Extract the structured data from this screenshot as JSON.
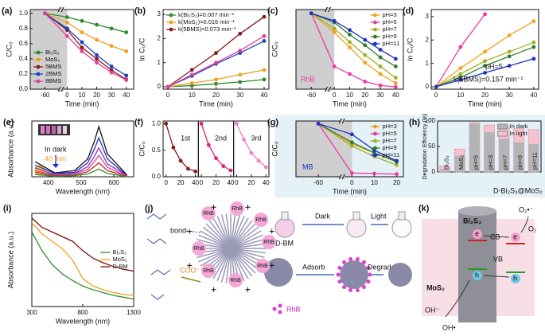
{
  "chart_data": [
    {
      "type": "line",
      "label": "(a)",
      "xlabel": "Time (min)",
      "ylabel": "C/C₀",
      "markers": true,
      "legend": "lower left",
      "x": [
        -60,
        0,
        10,
        20,
        30,
        40
      ],
      "xlim": [
        -70,
        45
      ],
      "xbreak": [
        -50,
        -5
      ],
      "shade": [
        -70,
        0
      ],
      "xticks": [
        -60,
        0,
        10,
        20,
        30,
        40
      ],
      "ylim": [
        0,
        1.05
      ],
      "yticks": [
        {
          "value": 0,
          "label": "0.0"
        },
        0.2,
        0.4,
        0.6,
        0.8,
        {
          "value": 1,
          "label": "1.0"
        }
      ],
      "series": [
        {
          "name": "Bi₂S₃",
          "color": "#2e8b2e",
          "values": [
            1.0,
            0.95,
            0.9,
            0.85,
            0.8,
            0.75
          ]
        },
        {
          "name": "MoS₂",
          "color": "#f0a020",
          "values": [
            1.0,
            0.88,
            0.75,
            0.65,
            0.57,
            0.5
          ]
        },
        {
          "name": "5BMS",
          "color": "#8b1a1a",
          "values": [
            1.0,
            0.78,
            0.55,
            0.4,
            0.25,
            0.13
          ]
        },
        {
          "name": "2BMS",
          "color": "#1f3fbf",
          "values": [
            1.0,
            0.8,
            0.62,
            0.45,
            0.3,
            0.18
          ]
        },
        {
          "name": "8BMS",
          "color": "#e0409a",
          "values": [
            1.0,
            0.7,
            0.5,
            0.35,
            0.22,
            0.12
          ]
        }
      ]
    },
    {
      "type": "line",
      "label": "(b)",
      "xlabel": "Time (min)",
      "ylabel": "ln C₀/C",
      "markers": true,
      "legend": "upper left",
      "x": [
        0,
        10,
        20,
        30,
        40
      ],
      "xlim": [
        -2,
        42
      ],
      "xticks": [
        0,
        10,
        20,
        30,
        40
      ],
      "ylim": [
        -0.1,
        3.2
      ],
      "yticks": [
        0,
        1,
        2,
        3
      ],
      "series": [
        {
          "name": "k(Bi₂S₃)=0.007 min⁻¹",
          "color": "#2e8b2e",
          "values": [
            0,
            0.05,
            0.12,
            0.2,
            0.3
          ]
        },
        {
          "name": "k(MoS₂)=0.016 min⁻¹",
          "color": "#f0a020",
          "values": [
            0,
            0.15,
            0.3,
            0.5,
            0.7
          ]
        },
        {
          "name": "k(5BMS)=0.073 min⁻¹",
          "color": "#8b1a1a",
          "values": [
            0,
            0.7,
            1.4,
            2.2,
            2.9
          ]
        },
        {
          "color": "#1f3fbf",
          "values": [
            0,
            0.45,
            0.95,
            1.4,
            1.9
          ]
        },
        {
          "color": "#e0409a",
          "values": [
            0,
            0.5,
            1.0,
            1.5,
            2.1
          ]
        }
      ]
    },
    {
      "type": "line",
      "label": "(c)",
      "xlabel": "Time (min)",
      "ylabel": "C/C₀",
      "markers": true,
      "legend": "upper right",
      "x": [
        -60,
        0,
        10,
        20,
        30,
        40
      ],
      "xlim": [
        -70,
        45
      ],
      "xbreak": [
        -50,
        -5
      ],
      "shade": [
        -70,
        0
      ],
      "xticks": [
        -60,
        0,
        10,
        20,
        30,
        40
      ],
      "ylim": [
        0,
        1.05
      ],
      "annotations": [
        {
          "text": "RhB",
          "color": "#e0409a"
        }
      ],
      "series": [
        {
          "name": "pH=3",
          "color": "#f5a020",
          "values": [
            1,
            0.75,
            0.55,
            0.35,
            0.2,
            0.08
          ]
        },
        {
          "name": "pH=5",
          "color": "#ee3aa0",
          "values": [
            1,
            0.3,
            0.2,
            0.1,
            0.05,
            0.03
          ]
        },
        {
          "name": "pH=7",
          "color": "#a0b020",
          "values": [
            1,
            0.8,
            0.62,
            0.45,
            0.3,
            0.15
          ]
        },
        {
          "name": "pH=9",
          "color": "#2d7d2d",
          "values": [
            1,
            0.88,
            0.72,
            0.58,
            0.42,
            0.3
          ]
        },
        {
          "name": "pH=11",
          "color": "#2030c0",
          "values": [
            1,
            0.9,
            0.78,
            0.65,
            0.52,
            0.4
          ]
        }
      ]
    },
    {
      "type": "line",
      "label": "(d)",
      "xlabel": "Time (min)",
      "ylabel": "ln C₀/C",
      "markers": true,
      "x": [
        0,
        10,
        20,
        30,
        40
      ],
      "xlim": [
        -2,
        42
      ],
      "xticks": [
        0,
        10,
        20,
        30,
        40
      ],
      "ylim": [
        -0.1,
        3.3
      ],
      "yticks": [
        0,
        1,
        2,
        3
      ],
      "annotations": [
        {
          "text": "pH=5",
          "color": "#111"
        },
        {
          "text": "k(5BMS)=0.157 min⁻¹",
          "color": "#111"
        }
      ],
      "series": [
        {
          "color": "#f5a020",
          "values": [
            0,
            0.8,
            1.5,
            2.2,
            2.8
          ]
        },
        {
          "color": "#ee3aa0",
          "values": [
            0,
            1.7,
            3.1,
            null,
            null
          ]
        },
        {
          "color": "#a0b020",
          "values": [
            0,
            0.55,
            1.1,
            1.5,
            1.9
          ]
        },
        {
          "color": "#2d7d2d",
          "values": [
            0,
            0.4,
            0.9,
            1.3,
            1.7
          ]
        },
        {
          "color": "#2030c0",
          "values": [
            0,
            0.3,
            0.6,
            0.9,
            1.2
          ]
        }
      ]
    },
    {
      "type": "line",
      "label": "(e)",
      "xlabel": "Wavelength (nm)",
      "ylabel": "Absorbance (a.u.)",
      "markers": false,
      "x": [
        360,
        420,
        480,
        520,
        540,
        554,
        580,
        640
      ],
      "xlim": [
        350,
        660
      ],
      "xticks": [
        400,
        500,
        600
      ],
      "ylim": [
        0,
        1
      ],
      "annotations": [
        {
          "text": "In dark",
          "color": "#111"
        },
        {
          "text": "40 min",
          "color": "#f0a020"
        }
      ],
      "series": [
        {
          "color": "#111111",
          "values": [
            0.27,
            0.07,
            0.11,
            0.32,
            0.63,
            0.9,
            0.41,
            0.03
          ]
        },
        {
          "color": "#2030c0",
          "values": [
            0.21,
            0.06,
            0.08,
            0.25,
            0.49,
            0.7,
            0.32,
            0.02
          ]
        },
        {
          "color": "#8a30c0",
          "values": [
            0.16,
            0.04,
            0.06,
            0.18,
            0.36,
            0.52,
            0.23,
            0.02
          ]
        },
        {
          "color": "#e0409a",
          "values": [
            0.11,
            0.03,
            0.05,
            0.13,
            0.27,
            0.38,
            0.17,
            0.01
          ]
        },
        {
          "color": "#d02020",
          "values": [
            0.08,
            0.02,
            0.03,
            0.09,
            0.18,
            0.25,
            0.11,
            0.01
          ]
        },
        {
          "color": "#2e8b2e",
          "values": [
            0.04,
            0.01,
            0.02,
            0.05,
            0.1,
            0.14,
            0.06,
            0
          ]
        }
      ]
    },
    {
      "type": "line",
      "label": "(f)",
      "ylabel": "C/C₀",
      "markers": true,
      "split": true,
      "xlim": [
        -4,
        44
      ],
      "xticks": [
        0,
        20,
        40
      ],
      "ylim": [
        0,
        1.05
      ],
      "yticks": [
        {
          "value": 0,
          "label": "0.0"
        },
        0.5,
        {
          "value": 1,
          "label": "1.0"
        }
      ],
      "series": [
        {
          "name": "1st",
          "color": "#8b1a1a",
          "x": [
            0,
            10,
            20,
            30,
            40
          ],
          "values": [
            1.0,
            0.55,
            0.3,
            0.15,
            0.1
          ]
        },
        {
          "name": "2nd",
          "color": "#e0207a",
          "x": [
            0,
            10,
            20,
            30,
            40
          ],
          "values": [
            1.0,
            0.6,
            0.35,
            0.2,
            0.12
          ]
        },
        {
          "name": "3rd",
          "color": "#f080c8",
          "x": [
            0,
            10,
            20,
            30,
            40
          ],
          "values": [
            1.0,
            0.7,
            0.45,
            0.3,
            0.18
          ]
        }
      ]
    },
    {
      "type": "line",
      "label": "(g)",
      "xlabel": "Time (min)",
      "ylabel": "C/C₀",
      "markers": true,
      "legend": "upper right",
      "x": [
        -60,
        0,
        10,
        20
      ],
      "xlim": [
        -70,
        23
      ],
      "xbreak": [
        -50,
        -5
      ],
      "shade": [
        -70,
        0
      ],
      "xticks": [
        -60,
        0,
        10,
        20
      ],
      "ylim": [
        0,
        1.05
      ],
      "annotations": [
        {
          "text": "MB",
          "color": "#2030c0"
        }
      ],
      "series": [
        {
          "name": "pH=3",
          "color": "#f5a020",
          "values": [
            1,
            0.62,
            0.45,
            0.3
          ]
        },
        {
          "name": "pH=5",
          "color": "#ee3aa0",
          "values": [
            1,
            0.07,
            0.06,
            0.05
          ]
        },
        {
          "name": "pH=7",
          "color": "#a0b020",
          "values": [
            1,
            0.58,
            0.38,
            0.22
          ]
        },
        {
          "name": "pH=9",
          "color": "#2d7d2d",
          "values": [
            1,
            0.65,
            0.45,
            0.28
          ]
        },
        {
          "name": "pH=11",
          "color": "#2030c0",
          "values": [
            1,
            0.8,
            0.5,
            0.3
          ]
        }
      ]
    },
    {
      "type": "bar",
      "label": "(h)",
      "ylabel": "Degradation Efficiency (%)",
      "legend": "upper right",
      "categories": [
        "Bi₂S₃",
        "MoS₂",
        "pH=5",
        "pH=3",
        "pH=7",
        "pH=9",
        "pH=11"
      ],
      "ylim": [
        0,
        100
      ],
      "yticks": [
        0,
        50,
        100
      ],
      "annotations": [
        {
          "text": "D-Bi₂S₃@MoS₂",
          "color": "#111"
        }
      ],
      "series": [
        {
          "name": "In dark",
          "color": "#b4b4b4",
          "values": [
            5,
            32,
            95,
            78,
            65,
            58,
            55
          ]
        },
        {
          "name": "In light",
          "color": "#f6c2d0",
          "values": [
            12,
            45,
            97,
            92,
            90,
            85,
            83
          ]
        }
      ]
    },
    {
      "type": "line",
      "label": "(i)",
      "xlabel": "Wavelength (nm)",
      "ylabel": "Absorbance (a.u.)",
      "markers": false,
      "legend": "right",
      "x": [
        300,
        400,
        500,
        600,
        700,
        800,
        900,
        1000,
        1100,
        1200,
        1300
      ],
      "xlim": [
        300,
        1300
      ],
      "xticks": [
        300,
        800,
        1300
      ],
      "ylim": [
        0,
        1
      ],
      "series": [
        {
          "name": "Bi₂S₃",
          "color": "#2e8b2e",
          "values": [
            0.8,
            0.6,
            0.45,
            0.35,
            0.28,
            0.22,
            0.18,
            0.15,
            0.12,
            0.1,
            0.08
          ]
        },
        {
          "name": "MoS₂",
          "color": "#f0a020",
          "values": [
            0.9,
            0.78,
            0.7,
            0.62,
            0.5,
            0.3,
            0.22,
            0.18,
            0.15,
            0.13,
            0.12
          ]
        },
        {
          "name": "D-BM",
          "color": "#7a1010",
          "values": [
            0.95,
            0.85,
            0.8,
            0.75,
            0.7,
            0.6,
            0.52,
            0.47,
            0.43,
            0.4,
            0.38
          ]
        }
      ]
    }
  ],
  "diagrams": {
    "j": {
      "label": "(j)",
      "bond": "bond",
      "rhb_tags": [
        "RhB",
        "RhB",
        "RhB",
        "RhB",
        "RhB",
        "RhB",
        "RhB",
        "RhB"
      ],
      "coo": "COO⁻",
      "dbm": "D-BM",
      "dark": "Dark",
      "light": "Light",
      "adsorb": "Adsorb",
      "degrade": "Degrade",
      "rhb_legend": "RhB"
    },
    "k": {
      "label": "(k)",
      "material_top": "Bi₂S₃",
      "cb": "CB",
      "vb": "VB",
      "electrons": [
        "e",
        "e"
      ],
      "holes": [
        "h",
        "h"
      ],
      "superoxide": "O₂•⁻",
      "oxygen": "O₂",
      "material_bottom": "MoS₂",
      "hydroxide": "OH⁻",
      "radical": "OH•"
    }
  }
}
